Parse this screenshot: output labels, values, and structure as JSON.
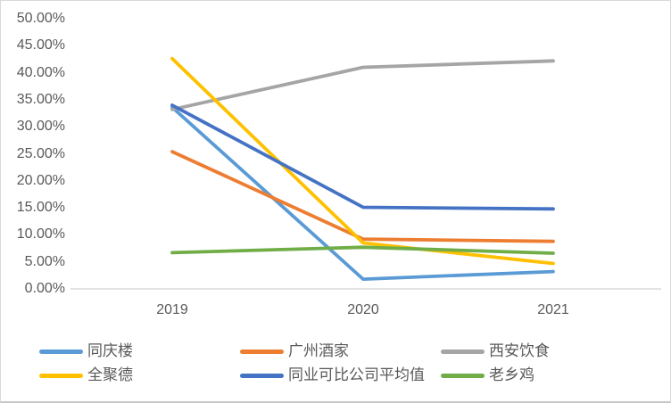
{
  "chart_data": {
    "type": "line",
    "categories": [
      "2019",
      "2020",
      "2021"
    ],
    "series": [
      {
        "name": "同庆楼",
        "color": "#5B9BD5",
        "values": [
          33.6,
          1.8,
          3.2
        ]
      },
      {
        "name": "广州酒家",
        "color": "#ED7D31",
        "values": [
          25.4,
          9.2,
          8.8
        ]
      },
      {
        "name": "西安饮食",
        "color": "#A5A5A5",
        "values": [
          33.2,
          41.0,
          42.2
        ]
      },
      {
        "name": "全聚德",
        "color": "#FFC000",
        "values": [
          42.6,
          8.5,
          4.7
        ]
      },
      {
        "name": "同业可比公司平均值",
        "color": "#4472C4",
        "values": [
          34.0,
          15.1,
          14.8
        ]
      },
      {
        "name": "老乡鸡",
        "color": "#70AD47",
        "values": [
          6.7,
          7.7,
          6.6
        ]
      }
    ],
    "title": "",
    "xlabel": "",
    "ylabel": "",
    "ylim": [
      0,
      50
    ],
    "ytick_step": 5,
    "yticks": [
      "50.00%",
      "45.00%",
      "40.00%",
      "35.00%",
      "30.00%",
      "25.00%",
      "20.00%",
      "15.00%",
      "10.00%",
      "5.00%",
      "0.00%"
    ],
    "grid": false,
    "legend_position": "bottom",
    "axis_line_color": "#D9D9D9",
    "axis_text_color": "#595959"
  }
}
